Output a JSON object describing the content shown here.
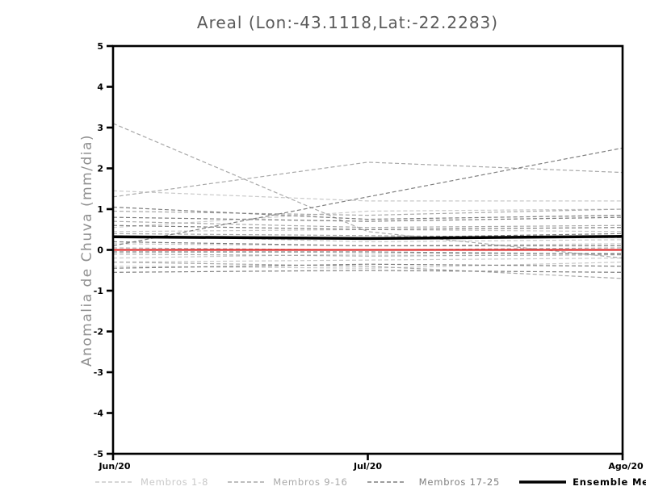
{
  "page": {
    "background": "#ffffff"
  },
  "chart_data": {
    "type": "line",
    "title": "Areal (Lon:-43.1118,Lat:-22.2283)",
    "ylabel": "Anomalia de Chuva (mm/dia)",
    "xlabel": "",
    "x_categories": [
      "Jun/20",
      "Jul/20",
      "Ago/20"
    ],
    "ylim": [
      -5,
      5
    ],
    "yticks": [
      -5,
      -4,
      -3,
      -2,
      -1,
      0,
      1,
      2,
      3,
      4,
      5
    ],
    "grid": false,
    "legend_position": "bottom",
    "axis_color": "#000000",
    "title_color": "#5a5a5a",
    "ylabel_color": "#8f8f8f",
    "groups": [
      {
        "name": "Membros 1-8",
        "color": "#c9c9c9",
        "style": "dashed",
        "members": [
          [
            1.45,
            1.2,
            1.2
          ],
          [
            0.55,
            0.95,
            1.0
          ],
          [
            0.45,
            0.5,
            0.45
          ],
          [
            0.35,
            0.2,
            0.25
          ],
          [
            0.15,
            0.1,
            0.15
          ],
          [
            -0.2,
            -0.1,
            -0.08
          ],
          [
            -0.3,
            -0.25,
            -0.2
          ],
          [
            -0.4,
            -0.45,
            -0.3
          ]
        ]
      },
      {
        "name": "Membros 9-16",
        "color": "#a9a9a9",
        "style": "dashed",
        "members": [
          [
            3.1,
            0.45,
            -0.2
          ],
          [
            1.3,
            2.15,
            1.9
          ],
          [
            0.95,
            0.85,
            1.0
          ],
          [
            0.7,
            0.55,
            0.6
          ],
          [
            0.4,
            0.35,
            0.3
          ],
          [
            0.05,
            0.0,
            0.05
          ],
          [
            -0.1,
            -0.15,
            -0.12
          ],
          [
            -0.3,
            -0.4,
            -0.7
          ]
        ]
      },
      {
        "name": "Membros 17-25",
        "color": "#7f7f7f",
        "style": "dashed",
        "members": [
          [
            0.1,
            1.3,
            2.5
          ],
          [
            1.05,
            0.75,
            0.85
          ],
          [
            0.8,
            0.7,
            0.8
          ],
          [
            0.6,
            0.5,
            0.55
          ],
          [
            0.3,
            0.3,
            0.4
          ],
          [
            0.2,
            0.1,
            0.1
          ],
          [
            -0.05,
            -0.05,
            -0.1
          ],
          [
            -0.45,
            -0.35,
            -0.4
          ],
          [
            -0.55,
            -0.5,
            -0.55
          ]
        ]
      }
    ],
    "ensemble_mean": {
      "name": "Ensemble Mean",
      "color": "#000000",
      "values": [
        0.32,
        0.28,
        0.33
      ]
    },
    "zero_line": {
      "value": 0,
      "color": "#e03131"
    }
  }
}
